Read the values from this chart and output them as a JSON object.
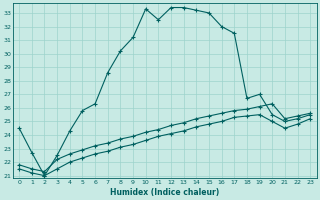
{
  "xlabel": "Humidex (Indice chaleur)",
  "bg_color": "#c8eae4",
  "grid_color": "#9dd4cc",
  "line_color": "#006060",
  "xlim": [
    -0.5,
    23.5
  ],
  "ylim": [
    20.8,
    33.7
  ],
  "yticks": [
    21,
    22,
    23,
    24,
    25,
    26,
    27,
    28,
    29,
    30,
    31,
    32,
    33
  ],
  "xticks": [
    0,
    1,
    2,
    3,
    4,
    5,
    6,
    7,
    8,
    9,
    10,
    11,
    12,
    13,
    14,
    15,
    16,
    17,
    18,
    19,
    20,
    21,
    22,
    23
  ],
  "curve1_x": [
    0,
    1,
    2,
    3,
    4,
    5,
    6,
    7,
    8,
    9,
    10,
    11,
    12,
    13,
    14,
    15,
    16,
    17,
    18,
    19,
    20,
    21,
    22,
    23
  ],
  "curve1_y": [
    24.5,
    22.7,
    21.0,
    22.5,
    24.3,
    25.8,
    26.3,
    28.6,
    30.2,
    31.2,
    33.3,
    32.5,
    33.4,
    33.4,
    33.2,
    33.0,
    32.0,
    31.5,
    26.7,
    27.0,
    25.5,
    25.0,
    25.2,
    25.5
  ],
  "curve2_x": [
    0,
    1,
    2,
    3,
    4,
    5,
    6,
    7,
    8,
    9,
    10,
    11,
    12,
    13,
    14,
    15,
    16,
    17,
    18,
    19,
    20,
    21,
    22,
    23
  ],
  "curve2_y": [
    21.8,
    21.5,
    21.3,
    22.2,
    22.6,
    22.9,
    23.2,
    23.4,
    23.7,
    23.9,
    24.2,
    24.4,
    24.7,
    24.9,
    25.2,
    25.4,
    25.6,
    25.8,
    25.9,
    26.1,
    26.3,
    25.2,
    25.4,
    25.6
  ],
  "curve3_x": [
    0,
    1,
    2,
    3,
    4,
    5,
    6,
    7,
    8,
    9,
    10,
    11,
    12,
    13,
    14,
    15,
    16,
    17,
    18,
    19,
    20,
    21,
    22,
    23
  ],
  "curve3_y": [
    21.5,
    21.2,
    21.0,
    21.5,
    22.0,
    22.3,
    22.6,
    22.8,
    23.1,
    23.3,
    23.6,
    23.9,
    24.1,
    24.3,
    24.6,
    24.8,
    25.0,
    25.3,
    25.4,
    25.5,
    25.0,
    24.5,
    24.8,
    25.2
  ],
  "marker": "+",
  "markersize": 3.5,
  "linewidth": 0.8
}
